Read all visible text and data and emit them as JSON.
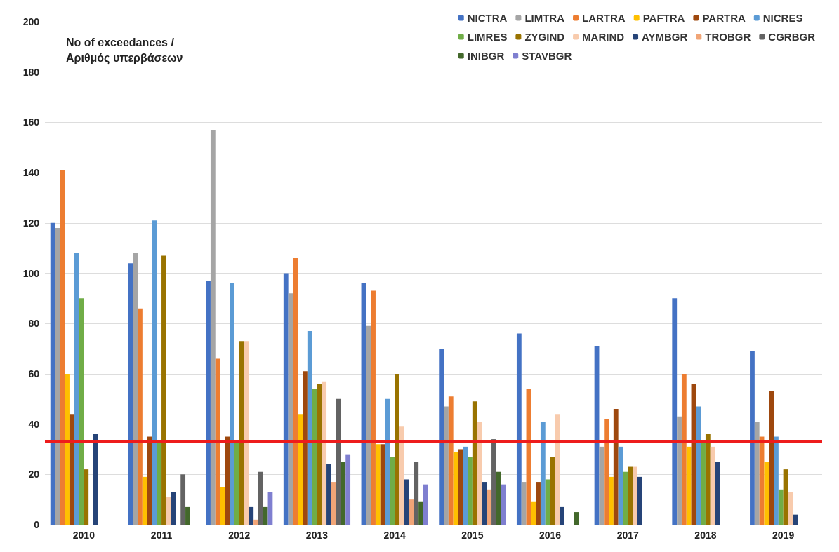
{
  "chart_data": {
    "type": "bar",
    "ylabel": "No of exceedances / Αριθμός υπερβάσεων",
    "categories": [
      "2010",
      "2011",
      "2012",
      "2013",
      "2014",
      "2015",
      "2016",
      "2017",
      "2018",
      "2019"
    ],
    "series": [
      {
        "name": "NICTRA",
        "color": "#4472c4",
        "values": [
          120,
          104,
          97,
          100,
          96,
          70,
          76,
          71,
          90,
          69
        ]
      },
      {
        "name": "LIMTRA",
        "color": "#a5a5a5",
        "values": [
          118,
          108,
          157,
          92,
          79,
          47,
          17,
          31,
          43,
          41
        ]
      },
      {
        "name": "LARTRA",
        "color": "#ed7d31",
        "values": [
          141,
          86,
          66,
          106,
          93,
          51,
          54,
          42,
          60,
          35
        ]
      },
      {
        "name": "PAFTRA",
        "color": "#ffc000",
        "values": [
          60,
          19,
          15,
          44,
          32,
          29,
          9,
          19,
          31,
          25
        ]
      },
      {
        "name": "PARTRA",
        "color": "#9e480e",
        "values": [
          44,
          35,
          35,
          61,
          32,
          30,
          17,
          46,
          56,
          53
        ]
      },
      {
        "name": "NICRES",
        "color": "#5b9bd5",
        "values": [
          108,
          121,
          96,
          77,
          50,
          31,
          41,
          31,
          47,
          35
        ]
      },
      {
        "name": "LIMRES",
        "color": "#70ad47",
        "values": [
          90,
          33,
          33,
          54,
          27,
          27,
          18,
          21,
          33,
          14
        ]
      },
      {
        "name": "ZYGIND",
        "color": "#997300",
        "values": [
          22,
          107,
          73,
          56,
          60,
          49,
          27,
          23,
          36,
          22
        ]
      },
      {
        "name": "MARIND",
        "color": "#f8cbad",
        "values": [
          null,
          11,
          73,
          57,
          39,
          41,
          44,
          23,
          31,
          13
        ]
      },
      {
        "name": "AYMBGR",
        "color": "#264478",
        "values": [
          36,
          13,
          7,
          24,
          18,
          17,
          7,
          19,
          25,
          4
        ]
      },
      {
        "name": "TROBGR",
        "color": "#f1a577",
        "values": [
          null,
          null,
          2,
          17,
          10,
          14,
          null,
          null,
          null,
          null
        ]
      },
      {
        "name": "CGRBGR",
        "color": "#636363",
        "values": [
          null,
          20,
          21,
          50,
          25,
          34,
          null,
          null,
          null,
          null
        ]
      },
      {
        "name": "INIBGR",
        "color": "#43682b",
        "values": [
          null,
          7,
          7,
          25,
          9,
          21,
          5,
          null,
          null,
          null
        ]
      },
      {
        "name": "STAVBGR",
        "color": "#7f7fd0",
        "values": [
          null,
          null,
          13,
          28,
          16,
          16,
          null,
          null,
          null,
          null
        ]
      }
    ],
    "ylim": [
      0,
      200
    ],
    "yticks": [
      0,
      20,
      40,
      60,
      80,
      100,
      120,
      140,
      160,
      180,
      200
    ],
    "ref_lines": [
      {
        "axis": "y",
        "value": 33,
        "color": "#ee1c1c"
      }
    ],
    "grid": "y",
    "legend": "top right"
  }
}
